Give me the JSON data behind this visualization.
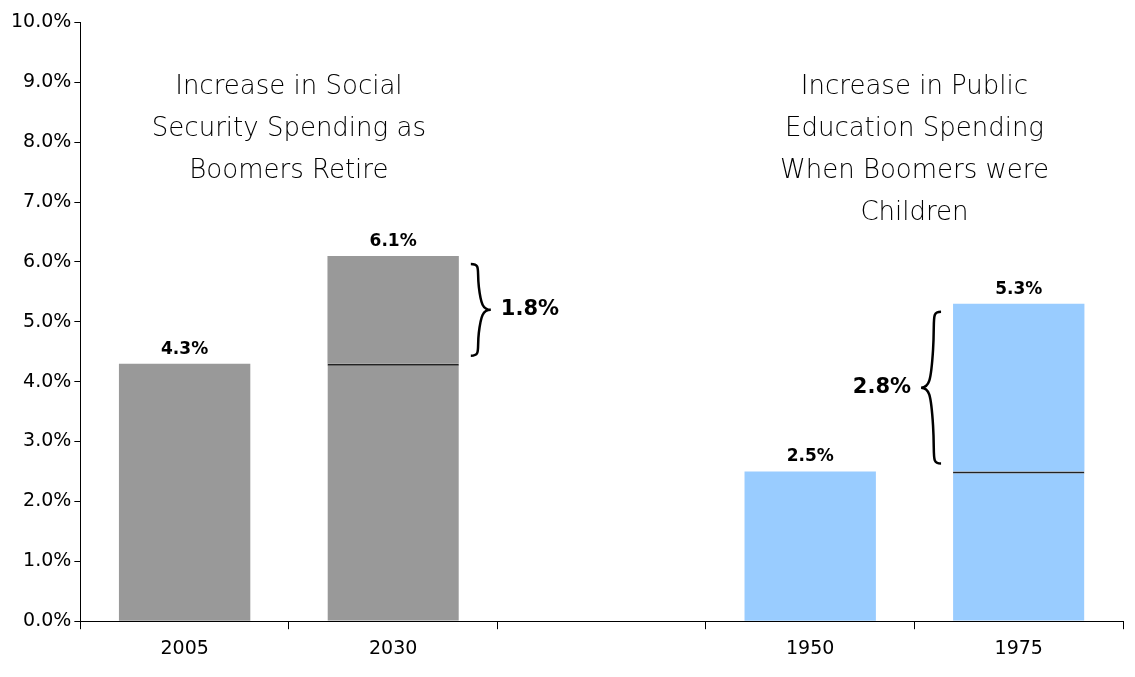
{
  "chart_data": {
    "type": "bar",
    "stacked": true,
    "categories": [
      "2005",
      "2030",
      null,
      "1950",
      "1975"
    ],
    "series": [
      {
        "colors": [
          "#999999",
          "#999999",
          "#999999",
          "#99ccff",
          "#99ccff"
        ],
        "values": [
          4.3,
          4.3,
          null,
          2.5,
          2.5
        ]
      },
      {
        "colors": [
          "#999999",
          "#999999",
          "#999999",
          "#99ccff",
          "#99ccff"
        ],
        "values": [
          null,
          1.8,
          null,
          null,
          2.8
        ]
      }
    ],
    "totals": [
      "4.3%",
      "6.1%",
      null,
      "2.5%",
      "5.3%"
    ],
    "ylim": [
      0,
      10
    ],
    "yticks": [
      {
        "value": 0,
        "label": "0.0%"
      },
      {
        "value": 1,
        "label": "1.0%"
      },
      {
        "value": 2,
        "label": "2.0%"
      },
      {
        "value": 3,
        "label": "3.0%"
      },
      {
        "value": 4,
        "label": "4.0%"
      },
      {
        "value": 5,
        "label": "5.0%"
      },
      {
        "value": 6,
        "label": "6.0%"
      },
      {
        "value": 7,
        "label": "7.0%"
      },
      {
        "value": 8,
        "label": "8.0%"
      },
      {
        "value": 9,
        "label": "9.0%"
      },
      {
        "value": 10,
        "label": "10.0%"
      }
    ],
    "annotations": [
      "Increase in Social Security Spending as Boomers Retire",
      "Increase in Public Education Spending When Boomers were Children",
      "1.8%",
      "2.8%"
    ]
  }
}
